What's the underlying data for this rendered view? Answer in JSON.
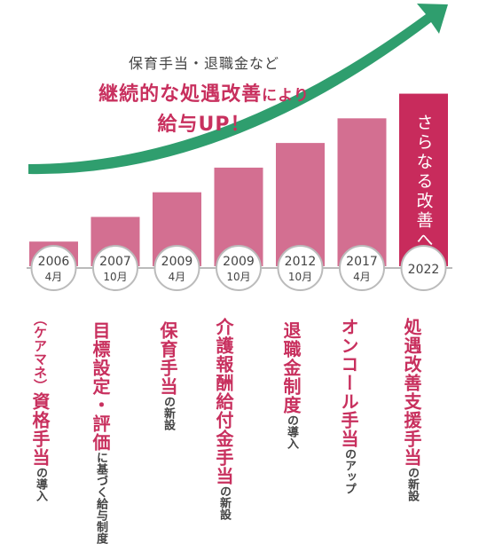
{
  "headline": {
    "sub": "保育手当・退職金など",
    "line1_emph": "継続的な処遇改善",
    "line1_rest": "により",
    "line2": "給与UP！"
  },
  "colors": {
    "bar": "#d36f91",
    "highlight_bar": "#c82b5c",
    "arrow": "#2f9e6e",
    "accent_text": "#c8305e",
    "circle_border": "#bbbbbb"
  },
  "chart_data": {
    "type": "bar",
    "categories": [
      "2006 4月",
      "2007 10月",
      "2009 4月",
      "2009 10月",
      "2012 10月",
      "2017 4月",
      "2022"
    ],
    "values": [
      1,
      2,
      3,
      4,
      5,
      6,
      7
    ],
    "ylim": [
      0,
      7.2
    ],
    "highlight_index": 6,
    "highlight_text": "さらなる改善へ",
    "milestones": [
      {
        "year": "2006",
        "month": "4月"
      },
      {
        "year": "2007",
        "month": "10月"
      },
      {
        "year": "2009",
        "month": "4月"
      },
      {
        "year": "2009",
        "month": "10月"
      },
      {
        "year": "2012",
        "month": "10月"
      },
      {
        "year": "2017",
        "month": "4月"
      },
      {
        "year": "2022",
        "month": ""
      }
    ]
  },
  "labels": [
    {
      "paren": "（ケアマネ）",
      "main": "資格手当",
      "minor": "の導入"
    },
    {
      "main": "目標設定・評価",
      "minor": "に基づく給与制度"
    },
    {
      "main": "保育手当",
      "minor": "の新設"
    },
    {
      "main": "介護報酬給付金手当",
      "minor": "の新設"
    },
    {
      "main": "退職金制度",
      "minor": "の導入"
    },
    {
      "main": "オンコール手当",
      "minor": "のアップ"
    },
    {
      "main": "処遇改善支援手当",
      "minor": "の新設"
    }
  ]
}
